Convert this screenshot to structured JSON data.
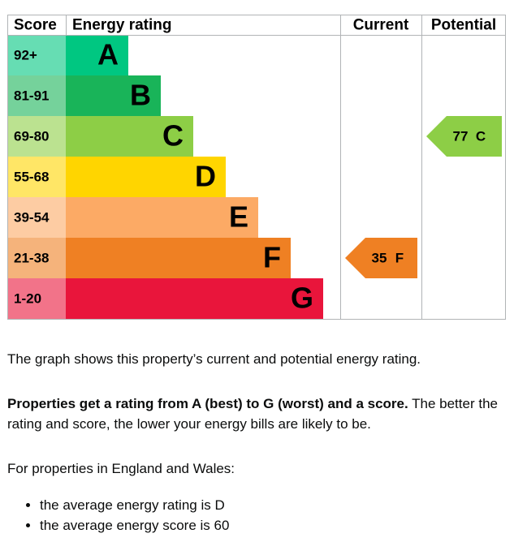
{
  "chart_data": {
    "type": "epc",
    "headers": [
      "Score",
      "Energy rating",
      "Current",
      "Potential"
    ],
    "bands": [
      {
        "score": "92+",
        "letter": "A",
        "color": "#00c781"
      },
      {
        "score": "81-91",
        "letter": "B",
        "color": "#19b459"
      },
      {
        "score": "69-80",
        "letter": "C",
        "color": "#8dce46"
      },
      {
        "score": "55-68",
        "letter": "D",
        "color": "#ffd500"
      },
      {
        "score": "39-54",
        "letter": "E",
        "color": "#fcaa65"
      },
      {
        "score": "21-38",
        "letter": "F",
        "color": "#ef8023"
      },
      {
        "score": "1-20",
        "letter": "G",
        "color": "#e9153b"
      }
    ],
    "current": {
      "value": 35,
      "letter": "F"
    },
    "potential": {
      "value": 77,
      "letter": "C"
    }
  },
  "text": {
    "intro": "The graph shows this property’s current and potential energy rating.",
    "bold": "Properties get a rating from A (best) to G (worst) and a score.",
    "rest": " The better the rating and score, the lower your energy bills are likely to be.",
    "england": "For properties in England and Wales:",
    "list": [
      "the average energy rating is D",
      "the average energy score is 60"
    ]
  }
}
